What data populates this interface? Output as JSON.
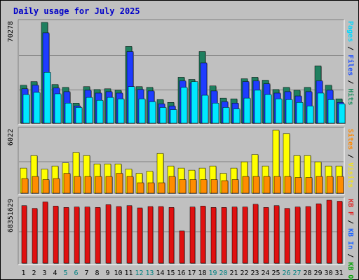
{
  "chart_data": {
    "type": "bar",
    "title": "Daily usage for July 2025",
    "categories": [
      "1",
      "2",
      "3",
      "4",
      "5",
      "6",
      "7",
      "8",
      "9",
      "10",
      "11",
      "12",
      "13",
      "14",
      "15",
      "16",
      "17",
      "18",
      "19",
      "20",
      "21",
      "22",
      "23",
      "24",
      "25",
      "26",
      "27",
      "28",
      "29",
      "30",
      "31"
    ],
    "weekend_days": [
      "5",
      "6",
      "12",
      "13",
      "19",
      "20",
      "26",
      "27"
    ],
    "panels": [
      {
        "id": "requests",
        "max_label": "70278",
        "right_label_parts": [
          {
            "text": "Pages",
            "color": "#00d8ff"
          },
          {
            "text": " / ",
            "color": "#000000"
          },
          {
            "text": "Files",
            "color": "#1e50ff"
          },
          {
            "text": " / ",
            "color": "#000000"
          },
          {
            "text": "Hits",
            "color": "#1f8f5f"
          }
        ],
        "ymax": 70278,
        "series": [
          {
            "name": "Hits",
            "color": "#1f7f5f",
            "values": [
              26500,
              29000,
              70278,
              27000,
              25000,
              14000,
              25500,
              23500,
              24000,
              23000,
              53500,
              25500,
              25000,
              16500,
              14500,
              32000,
              30500,
              50000,
              26000,
              17500,
              17000,
              31000,
              32000,
              30000,
              23500,
              25000,
              23000,
              25000,
              40000,
              26500,
              17000
            ]
          },
          {
            "name": "Files",
            "color": "#1e3cff",
            "values": [
              24000,
              26500,
              63000,
              24500,
              22000,
              12000,
              23000,
              21000,
              22000,
              21000,
              50000,
              23500,
              22500,
              13500,
              12000,
              29500,
              28000,
              42000,
              22500,
              15000,
              14000,
              29000,
              29500,
              27500,
              21000,
              22000,
              19000,
              22000,
              29500,
              23000,
              14500
            ]
          },
          {
            "name": "Pages",
            "color": "#00e8ff",
            "values": [
              20000,
              21500,
              35500,
              20500,
              14000,
              11000,
              18000,
              16000,
              18000,
              17000,
              25500,
              17000,
              15000,
              11000,
              9500,
              25000,
              29000,
              19500,
              14000,
              11000,
              10000,
              17500,
              23000,
              20000,
              17000,
              16500,
              14500,
              12000,
              21000,
              16500,
              13500
            ]
          }
        ]
      },
      {
        "id": "visits",
        "max_label": "6022",
        "right_label_parts": [
          {
            "text": "Sites",
            "color": "#ff8800"
          },
          {
            "text": " / ",
            "color": "#000000"
          },
          {
            "text": "Visits",
            "color": "#f0e020"
          }
        ],
        "ymax": 6022,
        "series": [
          {
            "name": "Visits",
            "color": "#ffff00",
            "values": [
              2400,
              3600,
              2300,
              2600,
              2900,
              3900,
              3600,
              2800,
              2800,
              2800,
              2300,
              1900,
              2100,
              3800,
              2600,
              2400,
              2200,
              2400,
              2600,
              1900,
              2400,
              3000,
              3700,
              2600,
              6022,
              5700,
              3600,
              3600,
              3000,
              2600,
              2600
            ]
          },
          {
            "name": "Sites",
            "color": "#ff8c00",
            "values": [
              1400,
              1600,
              1300,
              1400,
              1900,
              1600,
              1600,
              1600,
              1600,
              1900,
              1600,
              1000,
              1000,
              1000,
              1600,
              1300,
              1300,
              1300,
              1300,
              1200,
              1300,
              1600,
              1600,
              1600,
              1600,
              1600,
              1500,
              1500,
              1600,
              1600,
              1600
            ]
          }
        ]
      },
      {
        "id": "kbytes",
        "max_label": "68351629",
        "right_label_parts": [
          {
            "text": "KB F",
            "color": "#e02020"
          },
          {
            "text": " / ",
            "color": "#000000"
          },
          {
            "text": "KB In",
            "color": "#1e64ff"
          },
          {
            "text": " / ",
            "color": "#000000"
          },
          {
            "text": "KB Out",
            "color": "#00a000"
          }
        ],
        "ymax": 68351629,
        "series": [
          {
            "name": "KB F",
            "color": "#e01010",
            "values": [
              62500000,
              59500000,
              66500000,
              62000000,
              60500000,
              61000000,
              61000000,
              60500000,
              63500000,
              61500000,
              62500000,
              60000000,
              61500000,
              61500000,
              60500000,
              35000000,
              61000000,
              62000000,
              60500000,
              60500000,
              61000000,
              61000000,
              64000000,
              60500000,
              62500000,
              59500000,
              61000000,
              61500000,
              64500000,
              68351629,
              67200000
            ]
          }
        ]
      }
    ]
  }
}
